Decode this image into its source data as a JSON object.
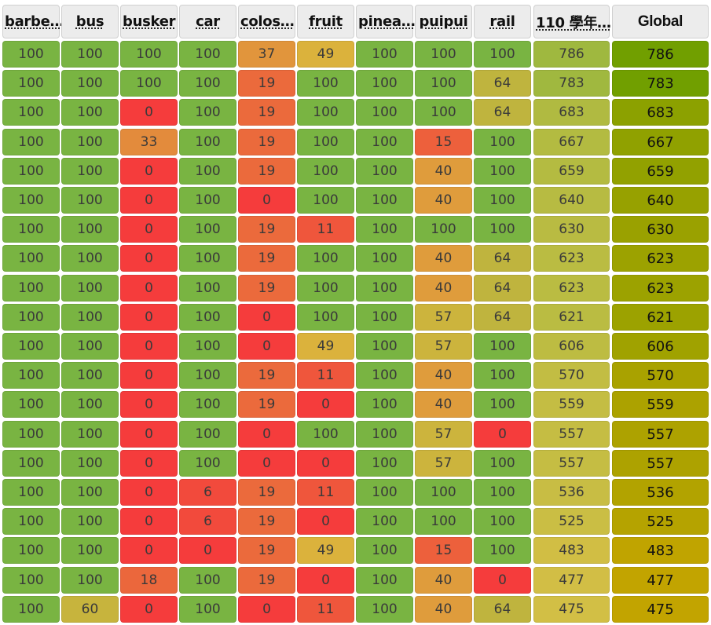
{
  "columns": [
    {
      "label": "barbe…"
    },
    {
      "label": "bus"
    },
    {
      "label": "busker"
    },
    {
      "label": "car"
    },
    {
      "label": "colos…"
    },
    {
      "label": "fruit"
    },
    {
      "label": "pinea…"
    },
    {
      "label": "puipui"
    },
    {
      "label": "rail"
    },
    {
      "label": "110 學年…"
    },
    {
      "label": "Global"
    }
  ],
  "rows": [
    {
      "scores": [
        100,
        100,
        100,
        100,
        37,
        49,
        100,
        100,
        100
      ],
      "total": 786,
      "global": 786
    },
    {
      "scores": [
        100,
        100,
        100,
        100,
        19,
        100,
        100,
        100,
        64
      ],
      "total": 783,
      "global": 783
    },
    {
      "scores": [
        100,
        100,
        0,
        100,
        19,
        100,
        100,
        100,
        64
      ],
      "total": 683,
      "global": 683
    },
    {
      "scores": [
        100,
        100,
        33,
        100,
        19,
        100,
        100,
        15,
        100
      ],
      "total": 667,
      "global": 667
    },
    {
      "scores": [
        100,
        100,
        0,
        100,
        19,
        100,
        100,
        40,
        100
      ],
      "total": 659,
      "global": 659
    },
    {
      "scores": [
        100,
        100,
        0,
        100,
        0,
        100,
        100,
        40,
        100
      ],
      "total": 640,
      "global": 640
    },
    {
      "scores": [
        100,
        100,
        0,
        100,
        19,
        11,
        100,
        100,
        100
      ],
      "total": 630,
      "global": 630
    },
    {
      "scores": [
        100,
        100,
        0,
        100,
        19,
        100,
        100,
        40,
        64
      ],
      "total": 623,
      "global": 623
    },
    {
      "scores": [
        100,
        100,
        0,
        100,
        19,
        100,
        100,
        40,
        64
      ],
      "total": 623,
      "global": 623
    },
    {
      "scores": [
        100,
        100,
        0,
        100,
        0,
        100,
        100,
        57,
        64
      ],
      "total": 621,
      "global": 621
    },
    {
      "scores": [
        100,
        100,
        0,
        100,
        0,
        49,
        100,
        57,
        100
      ],
      "total": 606,
      "global": 606
    },
    {
      "scores": [
        100,
        100,
        0,
        100,
        19,
        11,
        100,
        40,
        100
      ],
      "total": 570,
      "global": 570
    },
    {
      "scores": [
        100,
        100,
        0,
        100,
        19,
        0,
        100,
        40,
        100
      ],
      "total": 559,
      "global": 559
    },
    {
      "scores": [
        100,
        100,
        0,
        100,
        0,
        100,
        100,
        57,
        0
      ],
      "total": 557,
      "global": 557
    },
    {
      "scores": [
        100,
        100,
        0,
        100,
        0,
        0,
        100,
        57,
        100
      ],
      "total": 557,
      "global": 557
    },
    {
      "scores": [
        100,
        100,
        0,
        6,
        19,
        11,
        100,
        100,
        100
      ],
      "total": 536,
      "global": 536
    },
    {
      "scores": [
        100,
        100,
        0,
        6,
        19,
        0,
        100,
        100,
        100
      ],
      "total": 525,
      "global": 525
    },
    {
      "scores": [
        100,
        100,
        0,
        0,
        19,
        49,
        100,
        15,
        100
      ],
      "total": 483,
      "global": 483
    },
    {
      "scores": [
        100,
        100,
        18,
        100,
        19,
        0,
        100,
        40,
        0
      ],
      "total": 477,
      "global": 477
    },
    {
      "scores": [
        100,
        60,
        0,
        100,
        0,
        11,
        100,
        40,
        64
      ],
      "total": 475,
      "global": 475
    }
  ],
  "scale": {
    "cell_max": 100,
    "total_max": 800
  },
  "colors": {
    "score_low": "#f53c3c",
    "score_high": "#79b442",
    "global_low": "#c9a400",
    "global_high": "#6d9f00",
    "header_bg": "#ececec"
  }
}
